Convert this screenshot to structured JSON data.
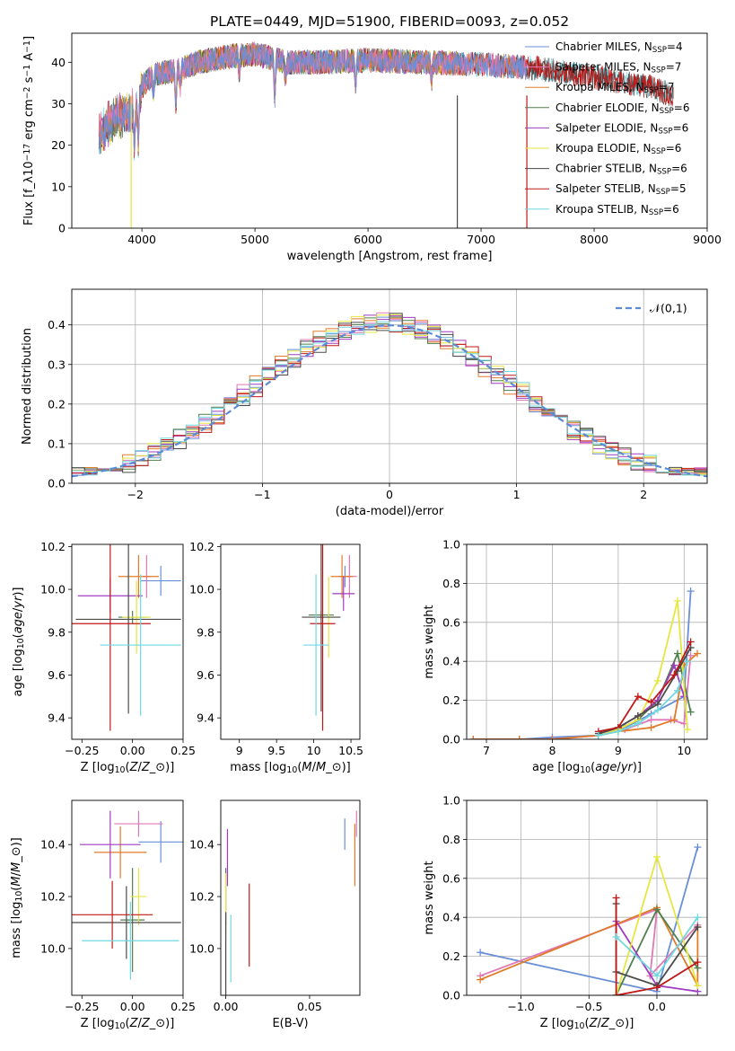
{
  "figure_title": "PLATE=0449, MJD=51900, FIBERID=0093, z=0.052",
  "colors": {
    "C_MILES": "#6a8fd8",
    "S_MILES": "#e078b8",
    "K_MILES": "#e07b2a",
    "C_ELODIE": "#4f7f4f",
    "S_ELODIE": "#a03cc0",
    "K_ELODIE": "#e6e640",
    "C_STELIB": "#4a4a4a",
    "S_STELIB": "#c01818",
    "K_STELIB": "#6fd8e0",
    "ref": "#5b8ad6",
    "grid": "#b0b0b0"
  },
  "chart_data": [
    {
      "id": "spectrum",
      "type": "line",
      "title": "",
      "xlabel": "wavelength [Angstrom, rest frame]",
      "ylabel": "Flux [f$_\\lambda$10$^{-17}$ erg cm$^{-2}$ s$^{-1}$ A$^{-1}$]",
      "xlim": [
        3380,
        9000
      ],
      "ylim": [
        0,
        47
      ],
      "xticks": [
        4000,
        5000,
        6000,
        7000,
        8000,
        9000
      ],
      "yticks": [
        0,
        10,
        20,
        30,
        40
      ],
      "continuum_x": [
        3620,
        3700,
        3800,
        3900,
        3950,
        4000,
        4100,
        4300,
        4500,
        4800,
        5000,
        5300,
        5600,
        6000,
        6500,
        7000,
        7500,
        8000,
        8500,
        8700
      ],
      "continuum_y": [
        22,
        25,
        27,
        28,
        29,
        34,
        37,
        38,
        40,
        41.5,
        42,
        40,
        40,
        40.5,
        40,
        39.5,
        38.5,
        36.5,
        34,
        32
      ],
      "absorption_lines": [
        {
          "x": 3933,
          "depth": 9
        },
        {
          "x": 3968,
          "depth": 10
        },
        {
          "x": 4102,
          "depth": 4
        },
        {
          "x": 4300,
          "depth": 8
        },
        {
          "x": 4340,
          "depth": 4
        },
        {
          "x": 4861,
          "depth": 4
        },
        {
          "x": 5175,
          "depth": 9
        },
        {
          "x": 5270,
          "depth": 4
        },
        {
          "x": 5890,
          "depth": 6
        },
        {
          "x": 6563,
          "depth": 4
        }
      ],
      "series_end_x": {
        "MILES": 7400,
        "ELODIE": 6800,
        "STELIB": 8700
      },
      "spikes_to_zero": [
        3905,
        6790,
        7405
      ],
      "series": [
        {
          "key": "C_MILES",
          "label": "Chabrier MILES, N$_{SSP}$=4"
        },
        {
          "key": "S_MILES",
          "label": "Salpeter MILES, N$_{SSP}$=7"
        },
        {
          "key": "K_MILES",
          "label": "Kroupa MILES, N$_{SSP}$=7"
        },
        {
          "key": "C_ELODIE",
          "label": "Chabrier ELODIE, N$_{SSP}$=6"
        },
        {
          "key": "S_ELODIE",
          "label": "Salpeter ELODIE, N$_{SSP}$=6"
        },
        {
          "key": "K_ELODIE",
          "label": "Kroupa ELODIE, N$_{SSP}$=6"
        },
        {
          "key": "C_STELIB",
          "label": "Chabrier STELIB, N$_{SSP}$=6"
        },
        {
          "key": "S_STELIB",
          "label": "Salpeter STELIB, N$_{SSP}$=5"
        },
        {
          "key": "K_STELIB",
          "label": "Kroupa STELIB, N$_{SSP}$=6"
        }
      ]
    },
    {
      "id": "residuals",
      "type": "histogram",
      "xlabel": "(data-model)/error",
      "ylabel": "Normed distribution",
      "xlim": [
        -2.5,
        2.5
      ],
      "ylim": [
        0,
        0.49
      ],
      "xticks": [
        -2,
        -1,
        0,
        1,
        2
      ],
      "yticks": [
        0.0,
        0.1,
        0.2,
        0.3,
        0.4
      ],
      "grid": true,
      "bin_width": 0.1,
      "reference_curve": {
        "label": "$\\mathcal{N}(0,1)$",
        "mean": 0,
        "sigma": 1,
        "style": "dashed"
      },
      "series_keys": [
        "C_MILES",
        "S_MILES",
        "K_MILES",
        "C_ELODIE",
        "S_ELODIE",
        "K_ELODIE",
        "C_STELIB",
        "S_STELIB",
        "K_STELIB"
      ]
    },
    {
      "id": "age_vs_Z",
      "type": "errorbar",
      "xlabel": "Z [log$_{10}$($Z/Z_\\odot$)]",
      "ylabel": "age  [log$_{10}$($age/yr$)]",
      "xlim": [
        -0.3,
        0.25
      ],
      "ylim": [
        9.3,
        10.21
      ],
      "xticks": [
        -0.25,
        0.0,
        0.25
      ],
      "xticklabels": [
        "−0.25",
        "0.00",
        "0.25"
      ],
      "yticks": [
        9.4,
        9.6,
        9.8,
        10.0,
        10.2
      ],
      "points": [
        {
          "key": "C_MILES",
          "x": 0.14,
          "xerr": 0.1,
          "y": 10.04,
          "yerr": 0.07
        },
        {
          "key": "S_MILES",
          "x": 0.07,
          "xerr": 0.02,
          "y": 10.06,
          "yerr": 0.1
        },
        {
          "key": "K_MILES",
          "x": 0.03,
          "xerr": 0.1,
          "y": 10.06,
          "yerr": 0.1
        },
        {
          "key": "C_ELODIE",
          "x": 0.0,
          "xerr": 0.07,
          "y": 9.87,
          "yerr": 0.03
        },
        {
          "key": "S_ELODIE",
          "x": -0.11,
          "xerr": 0.16,
          "y": 9.97,
          "yerr": 0.08
        },
        {
          "key": "K_ELODIE",
          "x": 0.02,
          "xerr": 0.07,
          "y": 9.87,
          "yerr": 0.17
        },
        {
          "key": "C_STELIB",
          "x": -0.02,
          "xerr": 0.26,
          "y": 9.86,
          "yerr": 0.44
        },
        {
          "key": "S_STELIB",
          "x": -0.11,
          "xerr": 0.2,
          "y": 9.84,
          "yerr": 0.5
        },
        {
          "key": "K_STELIB",
          "x": 0.04,
          "xerr": 0.2,
          "y": 9.74,
          "yerr": 0.33
        }
      ]
    },
    {
      "id": "age_vs_mass",
      "type": "errorbar",
      "xlabel": "mass [log$_{10}$($M/M_\\odot$)]",
      "ylabel": "",
      "xlim": [
        8.75,
        10.62
      ],
      "ylim": [
        9.3,
        10.21
      ],
      "xticks": [
        9.0,
        9.5,
        10.0,
        10.5
      ],
      "yticks": [
        9.4,
        9.6,
        9.8,
        10.0,
        10.2
      ],
      "points": [
        {
          "key": "C_MILES",
          "x": 10.42,
          "xerr": 0.08,
          "y": 10.06,
          "yerr": 0.05
        },
        {
          "key": "S_MILES",
          "x": 10.48,
          "xerr": 0.1,
          "y": 10.06,
          "yerr": 0.1
        },
        {
          "key": "K_MILES",
          "x": 10.38,
          "xerr": 0.15,
          "y": 10.06,
          "yerr": 0.1
        },
        {
          "key": "C_ELODIE",
          "x": 10.1,
          "xerr": 0.17,
          "y": 9.88,
          "yerr": 0.02
        },
        {
          "key": "S_ELODIE",
          "x": 10.4,
          "xerr": 0.15,
          "y": 9.98,
          "yerr": 0.08
        },
        {
          "key": "K_ELODIE",
          "x": 10.2,
          "xerr": 0.13,
          "y": 9.87,
          "yerr": 0.19
        },
        {
          "key": "C_STELIB",
          "x": 10.1,
          "xerr": 0.26,
          "y": 9.87,
          "yerr": 0.44
        },
        {
          "key": "S_STELIB",
          "x": 10.12,
          "xerr": 0.17,
          "y": 9.84,
          "yerr": 0.5
        },
        {
          "key": "K_STELIB",
          "x": 10.03,
          "xerr": 0.17,
          "y": 9.74,
          "yerr": 0.33
        }
      ]
    },
    {
      "id": "weight_vs_age",
      "type": "line",
      "xlabel": "age  [log$_{10}$($age/yr$)]",
      "ylabel": "mass weight",
      "xlim": [
        6.7,
        10.35
      ],
      "ylim": [
        0.0,
        1.0
      ],
      "xticks": [
        7,
        8,
        9,
        10
      ],
      "yticks": [
        0.0,
        0.2,
        0.4,
        0.6,
        0.8,
        1.0
      ],
      "grid": true,
      "series": [
        {
          "key": "C_MILES",
          "x": [
            6.8,
            7.5,
            8.0,
            8.7,
            9.1,
            9.5,
            10.0,
            10.1
          ],
          "y": [
            0.0,
            0.0,
            0.01,
            0.02,
            0.06,
            0.13,
            0.22,
            0.76
          ]
        },
        {
          "key": "S_MILES",
          "x": [
            6.8,
            7.5,
            8.0,
            8.7,
            9.1,
            9.5,
            9.8,
            10.0,
            10.1
          ],
          "y": [
            0.0,
            0.0,
            0.0,
            0.02,
            0.05,
            0.1,
            0.1,
            0.08,
            0.43
          ]
        },
        {
          "key": "K_MILES",
          "x": [
            6.8,
            7.5,
            8.0,
            8.7,
            9.0,
            9.5,
            9.85,
            10.0,
            10.2
          ],
          "y": [
            0.0,
            0.0,
            0.0,
            0.02,
            0.04,
            0.06,
            0.1,
            0.38,
            0.44
          ]
        },
        {
          "key": "C_ELODIE",
          "x": [
            8.7,
            9.0,
            9.3,
            9.6,
            9.9,
            10.1
          ],
          "y": [
            0.02,
            0.05,
            0.1,
            0.2,
            0.44,
            0.14
          ]
        },
        {
          "key": "S_ELODIE",
          "x": [
            8.7,
            9.0,
            9.3,
            9.6,
            9.85,
            10.0
          ],
          "y": [
            0.02,
            0.06,
            0.12,
            0.2,
            0.38,
            0.22
          ]
        },
        {
          "key": "K_ELODIE",
          "x": [
            8.7,
            9.0,
            9.3,
            9.6,
            9.9,
            10.05
          ],
          "y": [
            0.02,
            0.05,
            0.1,
            0.3,
            0.71,
            0.05
          ]
        },
        {
          "key": "C_STELIB",
          "x": [
            8.7,
            9.0,
            9.3,
            9.6,
            9.9,
            10.1
          ],
          "y": [
            0.03,
            0.06,
            0.12,
            0.18,
            0.35,
            0.47
          ]
        },
        {
          "key": "S_STELIB",
          "x": [
            8.7,
            9.0,
            9.3,
            9.5,
            9.85,
            10.1
          ],
          "y": [
            0.04,
            0.06,
            0.22,
            0.19,
            0.33,
            0.5
          ]
        },
        {
          "key": "K_STELIB",
          "x": [
            8.7,
            9.0,
            9.3,
            9.6,
            9.9,
            10.05
          ],
          "y": [
            0.02,
            0.04,
            0.08,
            0.15,
            0.25,
            0.4
          ]
        }
      ]
    },
    {
      "id": "mass_vs_Z",
      "type": "errorbar",
      "xlabel": "Z [log$_{10}$($Z/Z_\\odot$)]",
      "ylabel": "mass [log$_{10}$($M/M_\\odot$)]",
      "xlim": [
        -0.3,
        0.25
      ],
      "ylim": [
        9.82,
        10.57
      ],
      "xticks": [
        -0.25,
        0.0,
        0.25
      ],
      "xticklabels": [
        "−0.25",
        "0.00",
        "0.25"
      ],
      "yticks": [
        10.0,
        10.2,
        10.4
      ],
      "points": [
        {
          "key": "C_MILES",
          "x": 0.14,
          "xerr": 0.11,
          "y": 10.41,
          "yerr": 0.08
        },
        {
          "key": "S_MILES",
          "x": 0.03,
          "xerr": 0.12,
          "y": 10.48,
          "yerr": 0.05
        },
        {
          "key": "K_MILES",
          "x": -0.06,
          "xerr": 0.13,
          "y": 10.37,
          "yerr": 0.1
        },
        {
          "key": "C_ELODIE",
          "x": 0.0,
          "xerr": 0.06,
          "y": 10.11,
          "yerr": 0.2
        },
        {
          "key": "S_ELODIE",
          "x": -0.11,
          "xerr": 0.15,
          "y": 10.4,
          "yerr": 0.13
        },
        {
          "key": "K_ELODIE",
          "x": 0.03,
          "xerr": 0.04,
          "y": 10.2,
          "yerr": 0.11
        },
        {
          "key": "C_STELIB",
          "x": -0.03,
          "xerr": 0.27,
          "y": 10.1,
          "yerr": 0.14
        },
        {
          "key": "S_STELIB",
          "x": -0.1,
          "xerr": 0.2,
          "y": 10.13,
          "yerr": 0.13
        },
        {
          "key": "K_STELIB",
          "x": -0.01,
          "xerr": 0.24,
          "y": 10.03,
          "yerr": 0.15
        }
      ]
    },
    {
      "id": "mass_vs_ebv",
      "type": "errorbar",
      "xlabel": "E(B-V)",
      "ylabel": "",
      "xlim": [
        -0.003,
        0.08
      ],
      "ylim": [
        9.82,
        10.57
      ],
      "xticks": [
        0.0,
        0.05
      ],
      "xticklabels": [
        "0.00",
        "0.05"
      ],
      "yticks": [
        10.0,
        10.2,
        10.4
      ],
      "points": [
        {
          "key": "C_MILES",
          "x": 0.071,
          "xerr": 0,
          "y": 10.44,
          "yerr": 0.06
        },
        {
          "key": "S_MILES",
          "x": 0.078,
          "xerr": 0,
          "y": 10.48,
          "yerr": 0.05
        },
        {
          "key": "K_MILES",
          "x": 0.077,
          "xerr": 0,
          "y": 10.36,
          "yerr": 0.12
        },
        {
          "key": "C_ELODIE",
          "x": 0.0,
          "xerr": 0,
          "y": 10.2,
          "yerr": 0.11
        },
        {
          "key": "S_ELODIE",
          "x": 0.001,
          "xerr": 0,
          "y": 10.35,
          "yerr": 0.11
        },
        {
          "key": "K_ELODIE",
          "x": 0.0,
          "xerr": 0,
          "y": 10.17,
          "yerr": 0.12
        },
        {
          "key": "C_STELIB",
          "x": 0.0,
          "xerr": 0,
          "y": 9.98,
          "yerr": 0.16
        },
        {
          "key": "S_STELIB",
          "x": 0.014,
          "xerr": 0,
          "y": 10.09,
          "yerr": 0.16
        },
        {
          "key": "K_STELIB",
          "x": 0.003,
          "xerr": 0,
          "y": 10.0,
          "yerr": 0.13
        }
      ]
    },
    {
      "id": "weight_vs_Z",
      "type": "line",
      "xlabel": "Z [log$_{10}$($Z/Z_\\odot$)]",
      "ylabel": "mass weight",
      "xlim": [
        -1.4,
        0.37
      ],
      "ylim": [
        0.0,
        1.0
      ],
      "xticks": [
        -1.0,
        -0.5,
        0.0
      ],
      "xticklabels": [
        "−1.0",
        "−0.5",
        "0.0"
      ],
      "yticks": [
        0.0,
        0.2,
        0.4,
        0.6,
        0.8,
        1.0
      ],
      "grid": true,
      "series": [
        {
          "key": "C_MILES",
          "x": [
            -1.3,
            0.0,
            0.3
          ],
          "y": [
            0.22,
            0.02,
            0.76
          ]
        },
        {
          "key": "S_MILES",
          "x": [
            -1.3,
            0.0,
            -0.05,
            0.3
          ],
          "y": [
            0.1,
            0.44,
            0.1,
            0.36
          ]
        },
        {
          "key": "K_MILES",
          "x": [
            -1.3,
            0.0,
            0.3,
            0.3
          ],
          "y": [
            0.08,
            0.45,
            0.05,
            0.35
          ]
        },
        {
          "key": "C_ELODIE",
          "x": [
            -0.3,
            0.0,
            0.3
          ],
          "y": [
            0.0,
            0.44,
            0.14
          ]
        },
        {
          "key": "S_ELODIE",
          "x": [
            -0.3,
            0.0,
            0.3
          ],
          "y": [
            0.38,
            0.05,
            0.02
          ]
        },
        {
          "key": "K_ELODIE",
          "x": [
            -0.3,
            0.0,
            0.3
          ],
          "y": [
            0.0,
            0.71,
            0.05
          ]
        },
        {
          "key": "C_STELIB",
          "x": [
            -0.3,
            -0.3,
            0.0,
            0.3
          ],
          "y": [
            0.47,
            0.12,
            0.05,
            0.35
          ]
        },
        {
          "key": "S_STELIB",
          "x": [
            -0.3,
            -0.3,
            0.0,
            0.3
          ],
          "y": [
            0.5,
            0.0,
            0.04,
            0.17
          ]
        },
        {
          "key": "K_STELIB",
          "x": [
            -0.3,
            0.0,
            0.3
          ],
          "y": [
            0.3,
            0.1,
            0.4
          ]
        }
      ]
    }
  ]
}
